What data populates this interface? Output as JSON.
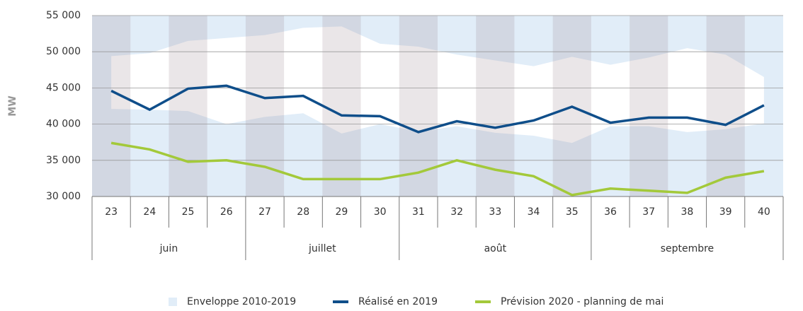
{
  "chart_data": {
    "type": "line",
    "ylabel": "MW",
    "categories": [
      "23",
      "24",
      "25",
      "26",
      "27",
      "28",
      "29",
      "30",
      "31",
      "32",
      "33",
      "34",
      "35",
      "36",
      "37",
      "38",
      "39",
      "40"
    ],
    "month_categories": [
      "juin",
      "juin",
      "juin",
      "juin",
      "juillet",
      "juillet",
      "juillet",
      "juillet",
      "août",
      "août",
      "août",
      "août",
      "août",
      "septembre",
      "septembre",
      "septembre",
      "septembre",
      "septembre"
    ],
    "ylim": [
      30000,
      55000
    ],
    "yticks": [
      {
        "value": 30000,
        "label": "30 000"
      },
      {
        "value": 35000,
        "label": "35 000"
      },
      {
        "value": 40000,
        "label": "40 000"
      },
      {
        "value": 45000,
        "label": "45 000"
      },
      {
        "value": 50000,
        "label": "50 000"
      },
      {
        "value": 55000,
        "label": "55 000"
      }
    ],
    "grid": true,
    "envelope": {
      "name": "Enveloppe 2010-2019",
      "color": "#e1edf8",
      "high": [
        49400,
        49800,
        51500,
        51900,
        52300,
        53300,
        53500,
        51100,
        50700,
        49600,
        48800,
        48000,
        49300,
        48200,
        49200,
        50500,
        49600,
        46500
      ],
      "low": [
        42100,
        42000,
        41800,
        40000,
        41000,
        41500,
        38700,
        40000,
        39000,
        39700,
        38800,
        38400,
        37400,
        39700,
        39700,
        38900,
        39300,
        40100
      ]
    },
    "series": [
      {
        "name": "Réalisé en 2019",
        "color": "#0f4e8a",
        "values": [
          44600,
          42000,
          44900,
          45300,
          43600,
          43900,
          41200,
          41100,
          38900,
          40400,
          39500,
          40500,
          42400,
          40200,
          40900,
          40900,
          39900,
          42600
        ]
      },
      {
        "name": "Prévision 2020 - planning de mai",
        "color": "#a3c93a",
        "values": [
          37400,
          36500,
          34800,
          35000,
          34100,
          32400,
          32400,
          32400,
          33300,
          35000,
          33700,
          32800,
          30200,
          31100,
          30800,
          30500,
          32600,
          33500
        ]
      }
    ],
    "legend": "bottom"
  }
}
